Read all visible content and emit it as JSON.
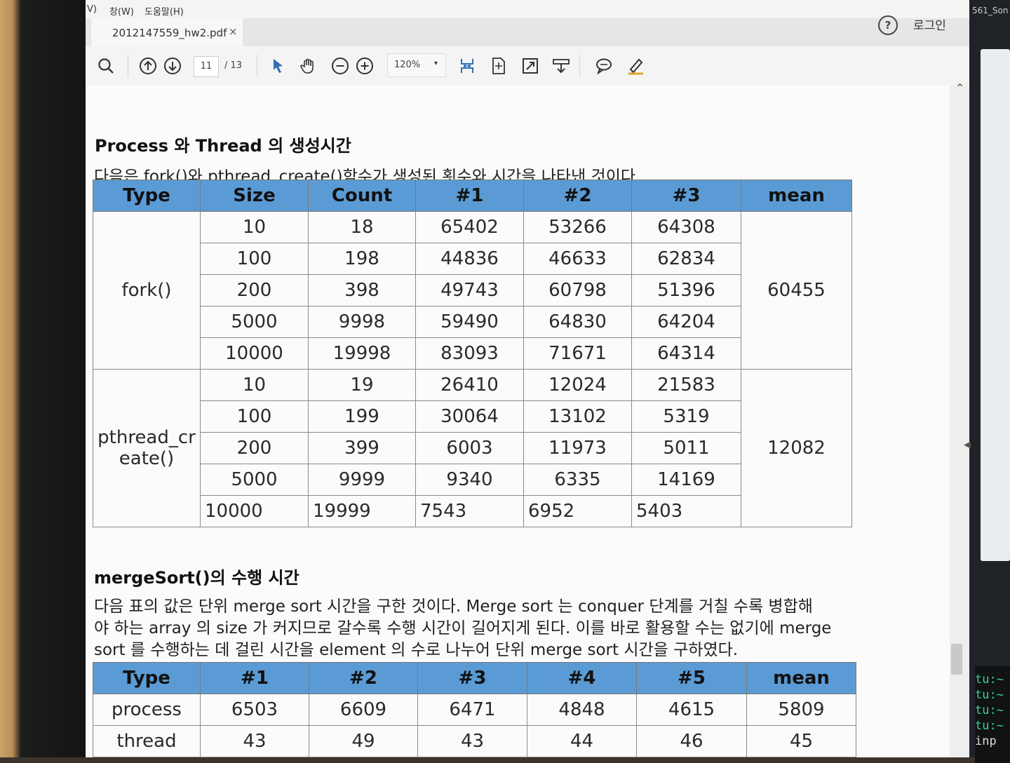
{
  "menu": {
    "view_partial": "V)",
    "window": "창(W)",
    "help": "도움말(H)"
  },
  "tab": {
    "filename": "2012147559_hw2.pdf",
    "close": "×"
  },
  "header": {
    "help_icon": "?",
    "login": "로그인"
  },
  "toolbar": {
    "current_page": "11",
    "total_pages": "/ 13",
    "zoom": "120%",
    "zoom_caret": "▾",
    "accent_color": "#2f6fb5"
  },
  "right_panel": {
    "top_text": "561_Son",
    "terminal_lines": [
      "tu:~",
      "tu:~",
      "tu:~",
      "tu:~"
    ],
    "terminal_input": "inp"
  },
  "document": {
    "section1": {
      "heading": "Process 와 Thread 의 생성시간",
      "paragraph": "다음은 fork()와 pthread_create()함수가 생성된 횟수와 시간을 나타낸 것이다.",
      "header_color": "#5b9bd5",
      "table": {
        "headers": [
          "Type",
          "Size",
          "Count",
          "#1",
          "#2",
          "#3",
          "mean"
        ],
        "groups": [
          {
            "type": "fork()",
            "mean": "60455",
            "rows": [
              [
                "10",
                "18",
                "65402",
                "53266",
                "64308"
              ],
              [
                "100",
                "198",
                "44836",
                "46633",
                "62834"
              ],
              [
                "200",
                "398",
                "49743",
                "60798",
                "51396"
              ],
              [
                "5000",
                "9998",
                "59490",
                "64830",
                "64204"
              ],
              [
                "10000",
                "19998",
                "83093",
                "71671",
                "64314"
              ]
            ]
          },
          {
            "type": "pthread_cr\neate()",
            "mean": "12082",
            "rows": [
              [
                "10",
                "19",
                "26410",
                "12024",
                "21583"
              ],
              [
                "100",
                "199",
                "30064",
                "13102",
                "5319"
              ],
              [
                "200",
                "399",
                "6003",
                "11973",
                "5011"
              ],
              [
                "5000",
                "9999",
                "9340",
                "6335",
                "14169"
              ],
              [
                "10000",
                "19999",
                "7543",
                "6952",
                "5403"
              ]
            ]
          }
        ]
      }
    },
    "section2": {
      "heading": "mergeSort()의 수행 시간",
      "paragraph_lines": [
        "다음 표의 값은 단위 merge sort 시간을 구한 것이다. Merge sort 는 conquer 단계를 거칠 수록 병합해",
        "야 하는 array 의 size 가 커지므로 갈수록 수행 시간이 길어지게 된다. 이를 바로 활용할 수는 없기에 merge",
        "sort 를 수행하는 데 걸린 시간을 element 의 수로 나누어 단위 merge sort 시간을 구하였다."
      ],
      "table": {
        "headers": [
          "Type",
          "#1",
          "#2",
          "#3",
          "#4",
          "#5",
          "mean"
        ],
        "rows": [
          [
            "process",
            "6503",
            "6609",
            "6471",
            "4848",
            "4615",
            "5809"
          ],
          [
            "thread",
            "43",
            "49",
            "43",
            "44",
            "46",
            "45"
          ]
        ]
      }
    }
  }
}
